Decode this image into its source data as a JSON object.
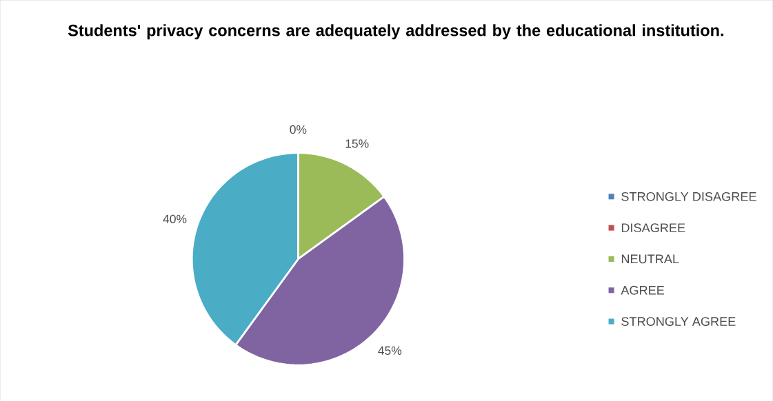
{
  "chart_data": {
    "type": "pie",
    "title": "Students' privacy concerns are adequately addressed by the educational institution.",
    "categories": [
      "STRONGLY DISAGREE",
      "DISAGREE",
      "NEUTRAL",
      "AGREE",
      "STRONGLY AGREE"
    ],
    "values": [
      0,
      0,
      15,
      45,
      40
    ],
    "colors": [
      "#4f81bd",
      "#c0504d",
      "#9bbb59",
      "#8064a2",
      "#4bacc6"
    ],
    "value_labels": [
      "0%",
      null,
      "15%",
      "45%",
      "40%"
    ],
    "legend": "right"
  }
}
